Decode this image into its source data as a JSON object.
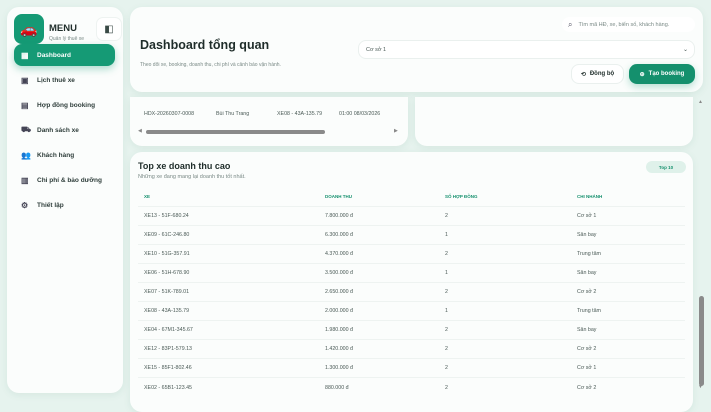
{
  "sidebar": {
    "logo_icon": "car-icon",
    "title": "MENU",
    "subtitle": "Quản lý thuê xe",
    "items": [
      {
        "label": "Dashboard",
        "icon": "grid-icon",
        "active": true
      },
      {
        "label": "Lịch thuê xe",
        "icon": "calendar-icon"
      },
      {
        "label": "Hợp đồng booking",
        "icon": "document-icon"
      },
      {
        "label": "Danh sách xe",
        "icon": "truck-icon"
      },
      {
        "label": "Khách hàng",
        "icon": "users-icon"
      },
      {
        "label": "Chi phí & bảo dưỡng",
        "icon": "receipt-icon"
      },
      {
        "label": "Thiết lập",
        "icon": "gear-icon"
      }
    ]
  },
  "header": {
    "title": "Dashboard tổng quan",
    "subtitle": "Theo dõi xe, booking, doanh thu, chi phí và cảnh báo vận hành.",
    "search_placeholder": "Tìm mã HĐ, xe, biển số, khách hàng.",
    "branch_selected": "Cơ sở 1",
    "sync_label": "Đồng bộ",
    "create_label": "Tạo booking"
  },
  "partial_row": {
    "code": "HDX-20260307-0008",
    "customer": "Bùi Thu Trang",
    "vehicle": "XE08 - 43A-135.79",
    "time": "01:00 08/03/2026"
  },
  "top_vehicles": {
    "title": "Top xe doanh thu cao",
    "subtitle": "Những xe đang mang lại doanh thu tốt nhất.",
    "badge": "Top 10",
    "columns": [
      "XE",
      "DOANH THU",
      "SỐ HỢP ĐỒNG",
      "CHI NHÁNH"
    ],
    "rows": [
      [
        "XE13 - 51F-680.24",
        "7.800.000 đ",
        "2",
        "Cơ sở 1"
      ],
      [
        "XE09 - 61C-246.80",
        "6.300.000 đ",
        "1",
        "Sân bay"
      ],
      [
        "XE10 - 51G-357.91",
        "4.370.000 đ",
        "2",
        "Trung tâm"
      ],
      [
        "XE06 - 51H-678.90",
        "3.500.000 đ",
        "1",
        "Sân bay"
      ],
      [
        "XE07 - 51K-789.01",
        "2.650.000 đ",
        "2",
        "Cơ sở 2"
      ],
      [
        "XE08 - 43A-135.79",
        "2.000.000 đ",
        "1",
        "Trung tâm"
      ],
      [
        "XE04 - 67M1-345.67",
        "1.980.000 đ",
        "2",
        "Sân bay"
      ],
      [
        "XE12 - 83P1-579.13",
        "1.420.000 đ",
        "2",
        "Cơ sở 2"
      ],
      [
        "XE15 - 85F1-802.46",
        "1.300.000 đ",
        "2",
        "Cơ sở 1"
      ],
      [
        "XE02 - 65B1-123.45",
        "880.000 đ",
        "2",
        "Cơ sở 2"
      ]
    ]
  },
  "colors": {
    "accent": "#159a75",
    "background": "#e6f3ee"
  }
}
